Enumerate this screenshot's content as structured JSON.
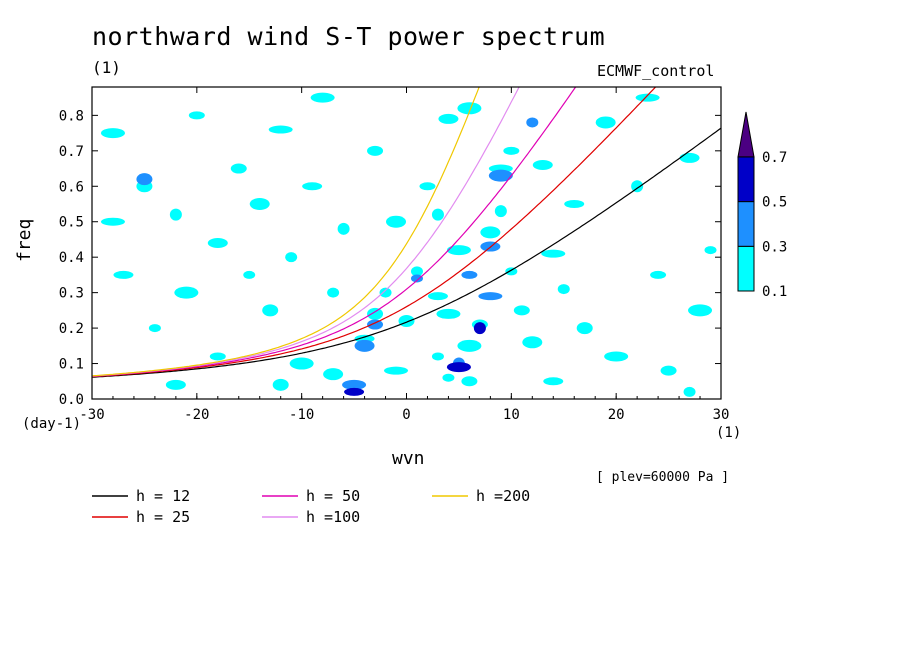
{
  "title": "northward wind S-T power spectrum",
  "subtitle_left": "(1)",
  "subtitle_right": "ECMWF_control",
  "plev_note": "[ plev=60000 Pa ]",
  "chart_data": {
    "type": "heatmap",
    "xlabel": "wvn",
    "ylabel": "freq",
    "x_unit": "(1)",
    "y_unit": "(day-1)",
    "xlim": [
      -30,
      30
    ],
    "ylim": [
      0,
      0.88
    ],
    "x_ticks": [
      -30,
      -20,
      -10,
      0,
      10,
      20,
      30
    ],
    "x_tick_labels": [
      "-30",
      "-20",
      "-10",
      "0",
      "10",
      "20",
      "30"
    ],
    "y_ticks": [
      0,
      0.1,
      0.2,
      0.3,
      0.4,
      0.5,
      0.6,
      0.7,
      0.8
    ],
    "y_tick_labels": [
      "0.0",
      "0.1",
      "0.2",
      "0.3",
      "0.4",
      "0.5",
      "0.6",
      "0.7",
      "0.8"
    ],
    "colorbar": {
      "levels": [
        "0.1",
        "0.3",
        "0.5",
        "0.7"
      ],
      "colors": [
        "#00ffff",
        "#1e90ff",
        "#0000c8",
        "#4b0082"
      ]
    },
    "curves": [
      {
        "name": "h = 12",
        "h": 12,
        "color": "#000000"
      },
      {
        "name": "h = 25",
        "h": 25,
        "color": "#e00000"
      },
      {
        "name": "h = 50",
        "h": 50,
        "color": "#e000b4"
      },
      {
        "name": "h =100",
        "h": 100,
        "color": "#e28cf0"
      },
      {
        "name": "h =200",
        "h": 200,
        "color": "#f0c800"
      }
    ],
    "blobs": [
      {
        "x": -5,
        "y": 0.02,
        "l": 3
      },
      {
        "x": -5,
        "y": 0.04,
        "l": 2
      },
      {
        "x": 5,
        "y": 0.1,
        "l": 2
      },
      {
        "x": 5,
        "y": 0.09,
        "l": 3
      },
      {
        "x": 4,
        "y": 0.06,
        "l": 1
      },
      {
        "x": 7,
        "y": 0.2,
        "l": 3
      },
      {
        "x": 7,
        "y": 0.21,
        "l": 1
      },
      {
        "x": 6,
        "y": 0.35,
        "l": 2
      },
      {
        "x": 8,
        "y": 0.43,
        "l": 2
      },
      {
        "x": 8,
        "y": 0.47,
        "l": 1
      },
      {
        "x": 9,
        "y": 0.63,
        "l": 2
      },
      {
        "x": 9,
        "y": 0.65,
        "l": 1
      },
      {
        "x": 1,
        "y": 0.34,
        "l": 2
      },
      {
        "x": 1,
        "y": 0.36,
        "l": 1
      },
      {
        "x": -3,
        "y": 0.21,
        "l": 2
      },
      {
        "x": -3,
        "y": 0.24,
        "l": 1
      },
      {
        "x": -4,
        "y": 0.15,
        "l": 2
      },
      {
        "x": -4,
        "y": 0.17,
        "l": 1
      },
      {
        "x": 8,
        "y": 0.29,
        "l": 2
      },
      {
        "x": 5,
        "y": 0.42,
        "l": 1
      },
      {
        "x": 9,
        "y": 0.53,
        "l": 1
      },
      {
        "x": 12,
        "y": 0.78,
        "l": 2
      },
      {
        "x": 10,
        "y": 0.7,
        "l": 1
      },
      {
        "x": 13,
        "y": 0.66,
        "l": 1
      },
      {
        "x": 6,
        "y": 0.15,
        "l": 1
      },
      {
        "x": 3,
        "y": 0.12,
        "l": 1
      },
      {
        "x": 6,
        "y": 0.05,
        "l": 1
      },
      {
        "x": -7,
        "y": 0.07,
        "l": 1
      },
      {
        "x": -1,
        "y": 0.08,
        "l": 1
      },
      {
        "x": -2,
        "y": 0.3,
        "l": 1
      },
      {
        "x": 0,
        "y": 0.22,
        "l": 1
      },
      {
        "x": 3,
        "y": 0.29,
        "l": 1
      },
      {
        "x": 4,
        "y": 0.24,
        "l": 1
      },
      {
        "x": 3,
        "y": 0.52,
        "l": 1
      },
      {
        "x": 2,
        "y": 0.6,
        "l": 1
      },
      {
        "x": 4,
        "y": 0.79,
        "l": 1
      },
      {
        "x": 6,
        "y": 0.82,
        "l": 1
      },
      {
        "x": 10,
        "y": 0.36,
        "l": 1
      },
      {
        "x": 11,
        "y": 0.25,
        "l": 1
      },
      {
        "x": 12,
        "y": 0.16,
        "l": 1
      },
      {
        "x": 14,
        "y": 0.41,
        "l": 1
      },
      {
        "x": 15,
        "y": 0.31,
        "l": 1
      },
      {
        "x": 17,
        "y": 0.2,
        "l": 1
      },
      {
        "x": 16,
        "y": 0.55,
        "l": 1
      },
      {
        "x": 20,
        "y": 0.12,
        "l": 1
      },
      {
        "x": 22,
        "y": 0.6,
        "l": 1
      },
      {
        "x": 24,
        "y": 0.35,
        "l": 1
      },
      {
        "x": 27,
        "y": 0.68,
        "l": 1
      },
      {
        "x": 28,
        "y": 0.25,
        "l": 1
      },
      {
        "x": 29,
        "y": 0.42,
        "l": 1
      },
      {
        "x": 25,
        "y": 0.08,
        "l": 1
      },
      {
        "x": 19,
        "y": 0.78,
        "l": 1
      },
      {
        "x": 23,
        "y": 0.85,
        "l": 1
      },
      {
        "x": 27,
        "y": 0.02,
        "l": 1
      },
      {
        "x": -25,
        "y": 0.62,
        "l": 2
      },
      {
        "x": -25,
        "y": 0.6,
        "l": 1
      },
      {
        "x": -27,
        "y": 0.35,
        "l": 1
      },
      {
        "x": -28,
        "y": 0.75,
        "l": 1
      },
      {
        "x": -22,
        "y": 0.52,
        "l": 1
      },
      {
        "x": -20,
        "y": 0.8,
        "l": 1
      },
      {
        "x": -18,
        "y": 0.44,
        "l": 1
      },
      {
        "x": -21,
        "y": 0.3,
        "l": 1
      },
      {
        "x": -24,
        "y": 0.2,
        "l": 1
      },
      {
        "x": -16,
        "y": 0.65,
        "l": 1
      },
      {
        "x": -14,
        "y": 0.55,
        "l": 1
      },
      {
        "x": -12,
        "y": 0.76,
        "l": 1
      },
      {
        "x": -11,
        "y": 0.4,
        "l": 1
      },
      {
        "x": -13,
        "y": 0.25,
        "l": 1
      },
      {
        "x": -9,
        "y": 0.6,
        "l": 1
      },
      {
        "x": -8,
        "y": 0.85,
        "l": 1
      },
      {
        "x": -6,
        "y": 0.48,
        "l": 1
      },
      {
        "x": -18,
        "y": 0.12,
        "l": 1
      },
      {
        "x": -22,
        "y": 0.04,
        "l": 1
      },
      {
        "x": -10,
        "y": 0.1,
        "l": 1
      },
      {
        "x": -15,
        "y": 0.35,
        "l": 1
      },
      {
        "x": -3,
        "y": 0.7,
        "l": 1
      },
      {
        "x": -1,
        "y": 0.5,
        "l": 1
      },
      {
        "x": -28,
        "y": 0.5,
        "l": 1
      },
      {
        "x": -7,
        "y": 0.3,
        "l": 1
      },
      {
        "x": -12,
        "y": 0.04,
        "l": 1
      },
      {
        "x": 14,
        "y": 0.05,
        "l": 1
      }
    ]
  }
}
